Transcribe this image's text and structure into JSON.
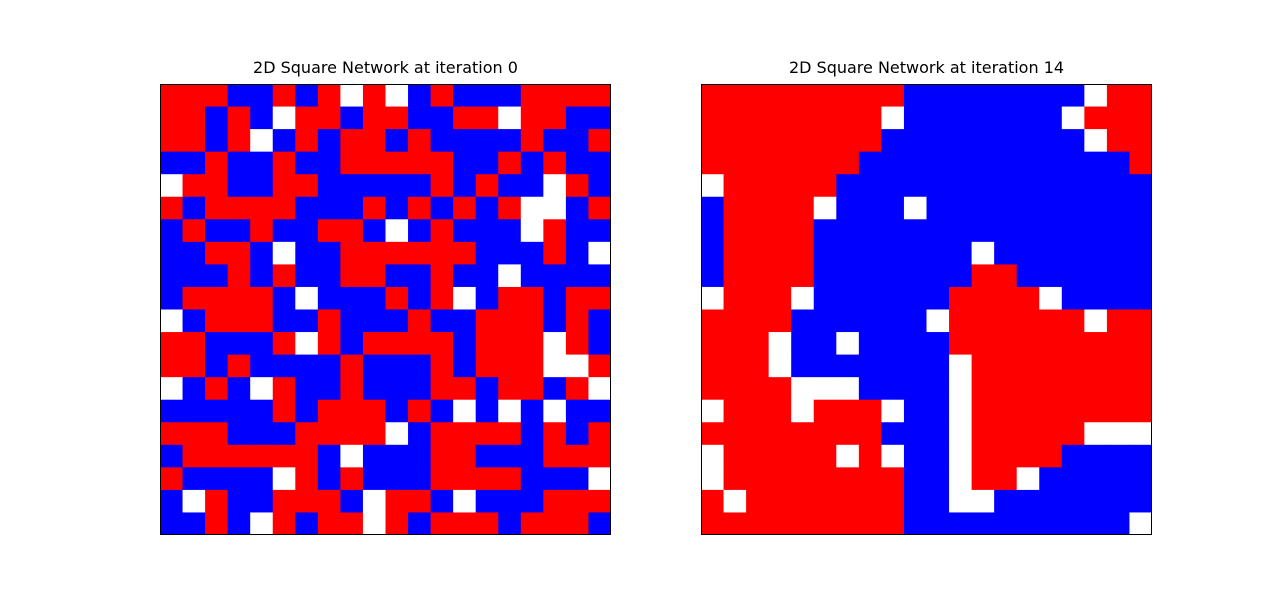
{
  "chart_data": [
    {
      "type": "heatmap",
      "title": "2D Square Network at iteration 0",
      "size": 20,
      "colors": {
        "R": "#ff0000",
        "B": "#0000ff",
        "W": "#ffffff"
      },
      "axes": {
        "ticks": false,
        "grid": false
      },
      "grid": [
        "RRRBBRBRWRWBRBBBRRRR",
        "RRBRBWRRBRRBBRRWRRBB",
        "RRBRWBRBRRBRBBBBRBBR",
        "BBRBBRBBRRRRRBBRBRBB",
        "WRRBBRRBBBBBRBRBBWRB",
        "RBRRRRBBBRBRBRBRWWBR",
        "BRBBRBBRRBWBRBBBWRBB",
        "BBRRBWBBRRRRRRBBBRBW",
        "BBBRBRBBRRBBRBBWBBBB",
        "BRRRRBWBBBRBRWBRRBRR",
        "WBRRRBBRBBBRBBRRRBRB",
        "RRBBBRWRBRRRRBRRRWRB",
        "RRBRBBBBRBBBRBRRRWWR",
        "WBRBWRBBRBBBRRBRRBRW",
        "BBBBBRBRRRBRBWBWBWBB",
        "RRRBBBRRRRWBRRRRBRBR",
        "BRRRRRRBWBBBRRBBBRRR",
        "RBBBBWRBRBBBRRRRBBBW",
        "BWRBBRRRBWRRBWBBBRRR",
        "BBRBWRBRRWRBRRRBRRRB"
      ]
    },
    {
      "type": "heatmap",
      "title": "2D Square Network at iteration 14",
      "size": 20,
      "colors": {
        "R": "#ff0000",
        "B": "#0000ff",
        "W": "#ffffff"
      },
      "axes": {
        "ticks": false,
        "grid": false
      },
      "grid": [
        "RRRRRRRRRBBBBBBBBWRR",
        "RRRRRRRRWBBBBBBBWRRR",
        "RRRRRRRRBBBBBBBBBWRR",
        "RRRRRRRBBBBBBBBBBBBR",
        "WRRRRRBBBBBBBBBBBBBB",
        "BRRRRWBBBWBBBBBBBBBB",
        "BRRRRBBBBBBBBBBBBBBB",
        "BRRRRBBBBBBBWBBBBBBB",
        "BRRRRBBBBBBBRRBBBBBB",
        "WRRRWBBBBBBRRRRWBBBB",
        "RRRRBBBBBBWRRRRRRWRR",
        "RRRWBBWBBBBRRRRRRRRR",
        "RRRWBBBBBBBWRRRRRRRR",
        "RRRRWWWBBBBWRRRRRRRR",
        "WRRRWRRRWBBWRRRRRRRR",
        "RRRRRRRRBBBWRRRRRWWW",
        "WRRRRRWRWBBWRRRRBBBB",
        "WRRRRRRRRBBWRRWBBBBB",
        "RWRRRRRRRBBWWBBBBBBB",
        "RRRRRRRRRBBBBBBBBBBW"
      ]
    }
  ]
}
